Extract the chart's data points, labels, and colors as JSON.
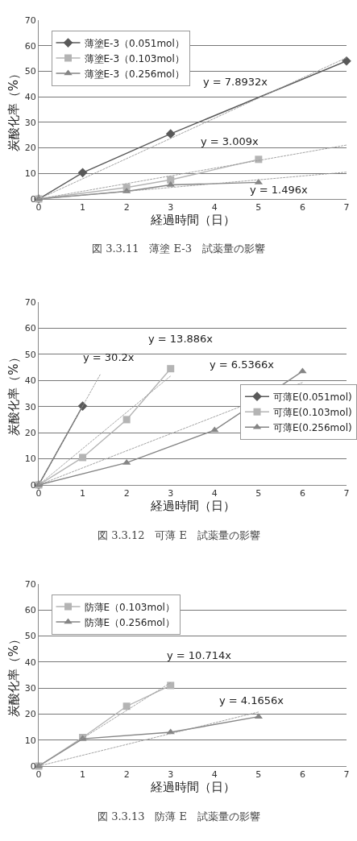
{
  "chart_data": [
    {
      "type": "line",
      "xlabel": "経過時間（日）",
      "ylabel": "炭酸化率（%）",
      "xlim": [
        0,
        7
      ],
      "xticks": [
        0,
        1,
        2,
        3,
        4,
        5,
        6,
        7
      ],
      "ylim": [
        0,
        70
      ],
      "yticks": [
        0,
        10,
        20,
        30,
        40,
        50,
        60,
        70
      ],
      "grid": "y",
      "legend": "top left",
      "series": [
        {
          "name": "薄塗E-3（0.051mol）",
          "color": "#595959",
          "marker": "diamond",
          "x": [
            0,
            1,
            3,
            7
          ],
          "values": [
            0,
            10.3,
            25.5,
            54
          ]
        },
        {
          "name": "薄塗E-3（0.103mol）",
          "color": "#b4b4b4",
          "marker": "square",
          "x": [
            0,
            2,
            3,
            5
          ],
          "values": [
            0,
            4.5,
            7.5,
            15.5
          ]
        },
        {
          "name": "薄塗E-3（0.256mol）",
          "color": "#858585",
          "marker": "triangle",
          "x": [
            0,
            2,
            3,
            5
          ],
          "values": [
            0,
            3,
            5.5,
            6.5
          ]
        },
        {
          "type": "line",
          "color": "#9a9a9a",
          "marker": "none",
          "line_style": "dashed",
          "x": [
            0,
            7
          ],
          "values": [
            0,
            55.3
          ]
        },
        {
          "type": "line",
          "color": "#9a9a9a",
          "marker": "none",
          "line_style": "dashed",
          "x": [
            0,
            7
          ],
          "values": [
            0,
            21.1
          ]
        },
        {
          "type": "line",
          "color": "#9a9a9a",
          "marker": "none",
          "line_style": "dashed",
          "x": [
            0,
            7
          ],
          "values": [
            0,
            10.5
          ]
        }
      ],
      "annotations": [
        "y = 7.8932x",
        "y = 3.009x",
        "y = 1.496x",
        "図 3.3.11　薄塗 E-3　試薬量の影響"
      ]
    },
    {
      "type": "line",
      "xlabel": "経過時間（日）",
      "ylabel": "炭酸化率（%）",
      "xlim": [
        0,
        7
      ],
      "xticks": [
        0,
        1,
        2,
        3,
        4,
        5,
        6,
        7
      ],
      "ylim": [
        0,
        70
      ],
      "yticks": [
        0,
        10,
        20,
        30,
        40,
        50,
        60,
        70
      ],
      "grid": "y",
      "legend": "right",
      "series": [
        {
          "name": "可薄E(0.051mol)",
          "color": "#595959",
          "marker": "diamond",
          "x": [
            0,
            1
          ],
          "values": [
            0,
            30.2
          ]
        },
        {
          "name": "可薄E(0.103mol)",
          "color": "#b4b4b4",
          "marker": "square",
          "x": [
            0,
            1,
            2,
            3
          ],
          "values": [
            0,
            10.5,
            25,
            44.5
          ]
        },
        {
          "name": "可薄E(0.256mol)",
          "color": "#858585",
          "marker": "triangle",
          "x": [
            0,
            2,
            4,
            6
          ],
          "values": [
            0,
            8.5,
            21,
            43.5
          ]
        },
        {
          "type": "line",
          "color": "#9a9a9a",
          "marker": "none",
          "line_style": "dashed",
          "x": [
            0,
            1.4
          ],
          "values": [
            0,
            42.3
          ]
        },
        {
          "type": "line",
          "color": "#9a9a9a",
          "marker": "none",
          "line_style": "dashed",
          "x": [
            0,
            3
          ],
          "values": [
            0,
            41.7
          ]
        },
        {
          "type": "line",
          "color": "#9a9a9a",
          "marker": "none",
          "line_style": "dashed",
          "x": [
            0,
            6
          ],
          "values": [
            0,
            39.2
          ]
        }
      ],
      "annotations": [
        "y = 30.2x",
        "y = 13.886x",
        "y = 6.5366x",
        "図 3.3.12　可薄 E　試薬量の影響"
      ]
    },
    {
      "type": "line",
      "xlabel": "経過時間（日）",
      "ylabel": "炭酸化率（%）",
      "xlim": [
        0,
        7
      ],
      "xticks": [
        0,
        1,
        2,
        3,
        4,
        5,
        6,
        7
      ],
      "ylim": [
        0,
        70
      ],
      "yticks": [
        0,
        10,
        20,
        30,
        40,
        50,
        60,
        70
      ],
      "grid": "y",
      "legend": "top left",
      "series": [
        {
          "name": "防薄E（0.103mol）",
          "color": "#b4b4b4",
          "marker": "square",
          "x": [
            0,
            1,
            2,
            3
          ],
          "values": [
            0,
            11,
            23,
            31
          ]
        },
        {
          "name": "防薄E（0.256mol）",
          "color": "#858585",
          "marker": "triangle",
          "x": [
            0,
            1,
            3,
            5
          ],
          "values": [
            0,
            10.5,
            13,
            19
          ]
        },
        {
          "type": "line",
          "color": "#9a9a9a",
          "marker": "none",
          "line_style": "dashed",
          "x": [
            0,
            3
          ],
          "values": [
            0,
            32.1
          ]
        },
        {
          "type": "line",
          "color": "#9a9a9a",
          "marker": "none",
          "line_style": "dashed",
          "x": [
            0,
            5
          ],
          "values": [
            0,
            20.8
          ]
        }
      ],
      "annotations": [
        "y = 10.714x",
        "y = 4.1656x",
        "図 3.3.13　防薄 E　試薬量の影響"
      ]
    }
  ]
}
